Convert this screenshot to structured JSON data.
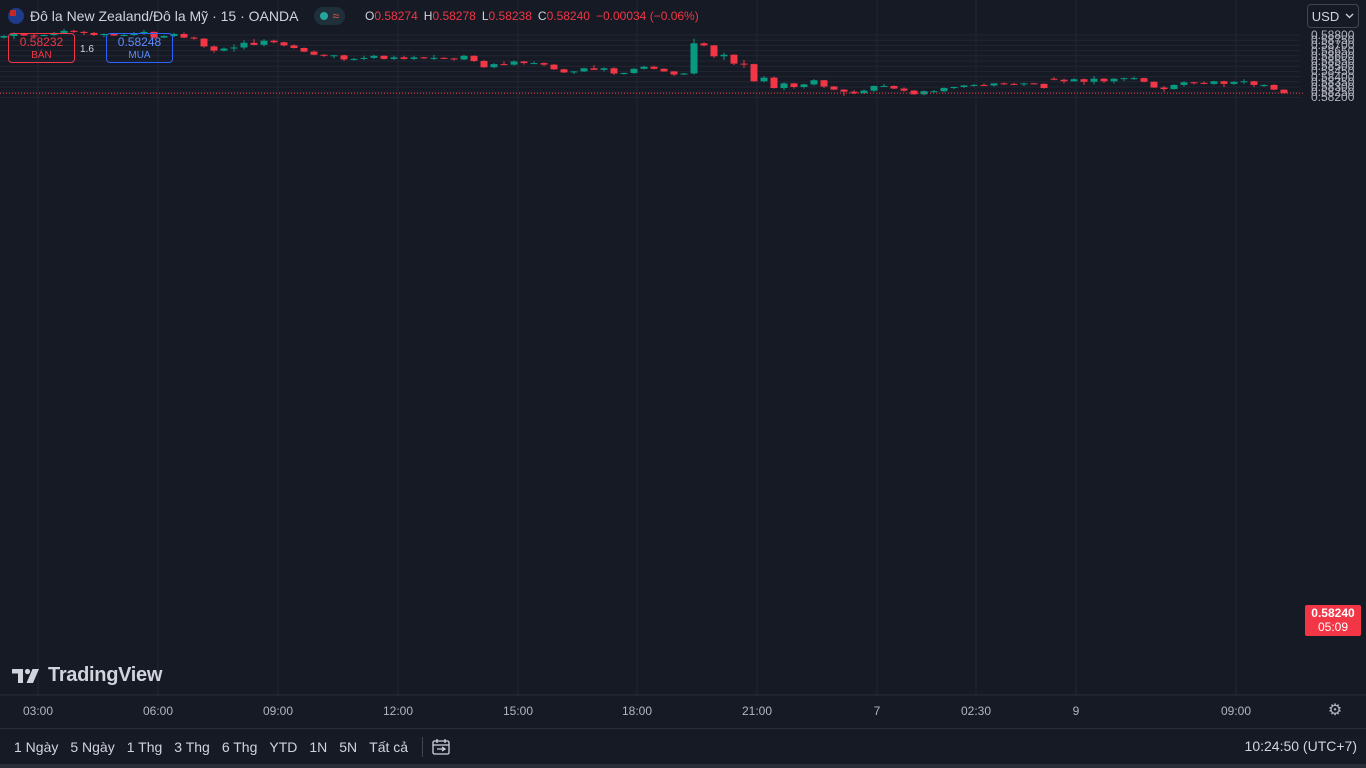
{
  "header": {
    "symbol_title": "Đô la New Zealand/Đô la Mỹ · 15 · OANDA",
    "ohlc": [
      {
        "key": "O",
        "value": "0.58274"
      },
      {
        "key": "H",
        "value": "0.58278"
      },
      {
        "key": "L",
        "value": "0.58238"
      },
      {
        "key": "C",
        "value": "0.58240"
      }
    ],
    "change": "−0.00034 (−0.06%)",
    "wave_glyph": "≈"
  },
  "trade": {
    "sell_price": "0.58232",
    "sell_label": "BÁN",
    "spread": "1.6",
    "buy_price": "0.58248",
    "buy_label": "MUA"
  },
  "currency_button": "USD",
  "last_price": {
    "price": "0.58240",
    "countdown": "05:09"
  },
  "logo_text": "TradingView",
  "toolbar": {
    "timeframes": [
      "1 Ngày",
      "5 Ngày",
      "1 Thg",
      "3 Thg",
      "6 Thg",
      "YTD",
      "1N",
      "5N",
      "Tất cả"
    ],
    "clock": "10:24:50 (UTC+7)"
  },
  "icons": {
    "settings": "gear-icon",
    "date_range": "calendar-range-icon",
    "dropdown": "chevron-down-icon",
    "flag": "nz-flag-icon"
  },
  "colors": {
    "up": "#089981",
    "down": "#f23645",
    "background": "#161a25",
    "grid": "#232632"
  },
  "chart_data": {
    "type": "candlestick",
    "title": "Đô la New Zealand/Đô la Mỹ · 15 · OANDA",
    "y_ticks": [
      "0.58800",
      "0.58750",
      "0.58700",
      "0.58650",
      "0.58600",
      "0.58550",
      "0.58500",
      "0.58450",
      "0.58400",
      "0.58350",
      "0.58300",
      "0.58250",
      "0.58200"
    ],
    "x_ticks": [
      "03:00",
      "06:00",
      "09:00",
      "12:00",
      "15:00",
      "18:00",
      "21:00",
      "7",
      "02:30",
      "9",
      "09:00"
    ],
    "ylim": [
      0.58165,
      0.58825
    ],
    "last_price": 0.5824,
    "grid": true,
    "candles": [
      [
        0.58795,
        0.588,
        0.5874,
        0.58755
      ],
      [
        0.58755,
        0.58805,
        0.58745,
        0.5879
      ],
      [
        0.5879,
        0.5888,
        0.5878,
        0.5883
      ],
      [
        0.5883,
        0.5887,
        0.5881,
        0.58835
      ],
      [
        0.58835,
        0.5884,
        0.5876,
        0.58775
      ],
      [
        0.58775,
        0.588,
        0.58765,
        0.5879
      ],
      [
        0.5879,
        0.58825,
        0.5876,
        0.5881
      ],
      [
        0.5881,
        0.5882,
        0.5879,
        0.58795
      ],
      [
        0.58795,
        0.5881,
        0.5877,
        0.5879
      ],
      [
        0.5879,
        0.58805,
        0.58785,
        0.588
      ],
      [
        0.588,
        0.5883,
        0.5879,
        0.5882
      ],
      [
        0.5882,
        0.5886,
        0.5881,
        0.5884
      ],
      [
        0.5884,
        0.5885,
        0.5882,
        0.5883
      ],
      [
        0.5883,
        0.5884,
        0.588,
        0.5882
      ],
      [
        0.5882,
        0.5883,
        0.5879,
        0.588
      ],
      [
        0.588,
        0.58815,
        0.5878,
        0.5881
      ],
      [
        0.5881,
        0.5882,
        0.5879,
        0.58795
      ],
      [
        0.58795,
        0.5881,
        0.58785,
        0.588
      ],
      [
        0.588,
        0.5883,
        0.5879,
        0.58815
      ],
      [
        0.58815,
        0.5885,
        0.588,
        0.5883
      ],
      [
        0.5883,
        0.58835,
        0.5876,
        0.58775
      ],
      [
        0.58775,
        0.588,
        0.5877,
        0.5879
      ],
      [
        0.5879,
        0.5882,
        0.5878,
        0.5881
      ],
      [
        0.5881,
        0.58825,
        0.5877,
        0.58775
      ],
      [
        0.58775,
        0.58785,
        0.58755,
        0.58765
      ],
      [
        0.58765,
        0.5877,
        0.5868,
        0.5869
      ],
      [
        0.5869,
        0.587,
        0.5863,
        0.5865
      ],
      [
        0.5865,
        0.5868,
        0.5864,
        0.5867
      ],
      [
        0.5867,
        0.5871,
        0.5864,
        0.5868
      ],
      [
        0.5868,
        0.5875,
        0.5866,
        0.58725
      ],
      [
        0.58725,
        0.5876,
        0.587,
        0.58705
      ],
      [
        0.58705,
        0.5876,
        0.5869,
        0.58745
      ],
      [
        0.58745,
        0.58755,
        0.5872,
        0.5873
      ],
      [
        0.5873,
        0.58735,
        0.5869,
        0.587
      ],
      [
        0.587,
        0.5871,
        0.5867,
        0.58675
      ],
      [
        0.58675,
        0.5868,
        0.58635,
        0.5864
      ],
      [
        0.5864,
        0.5865,
        0.58605,
        0.5861
      ],
      [
        0.5861,
        0.58615,
        0.5859,
        0.586
      ],
      [
        0.586,
        0.5861,
        0.58575,
        0.58605
      ],
      [
        0.58605,
        0.5861,
        0.5855,
        0.58565
      ],
      [
        0.58565,
        0.5858,
        0.58555,
        0.5857
      ],
      [
        0.5857,
        0.586,
        0.5856,
        0.5858
      ],
      [
        0.5858,
        0.5861,
        0.5857,
        0.586
      ],
      [
        0.586,
        0.58605,
        0.58565,
        0.5857
      ],
      [
        0.5857,
        0.586,
        0.5856,
        0.58585
      ],
      [
        0.58585,
        0.586,
        0.58565,
        0.5857
      ],
      [
        0.5857,
        0.586,
        0.5856,
        0.58585
      ],
      [
        0.58585,
        0.5859,
        0.5857,
        0.5858
      ],
      [
        0.5858,
        0.5861,
        0.5856,
        0.5858
      ],
      [
        0.5858,
        0.58585,
        0.5857,
        0.58575
      ],
      [
        0.58575,
        0.5858,
        0.58555,
        0.58565
      ],
      [
        0.58565,
        0.5861,
        0.5856,
        0.586
      ],
      [
        0.586,
        0.58605,
        0.5854,
        0.5855
      ],
      [
        0.5855,
        0.5856,
        0.58485,
        0.5849
      ],
      [
        0.5849,
        0.5853,
        0.5848,
        0.5852
      ],
      [
        0.5852,
        0.58545,
        0.5851,
        0.58515
      ],
      [
        0.58515,
        0.58555,
        0.58505,
        0.58545
      ],
      [
        0.58545,
        0.5855,
        0.58515,
        0.5853
      ],
      [
        0.5853,
        0.58545,
        0.5852,
        0.5853
      ],
      [
        0.5853,
        0.58535,
        0.585,
        0.58515
      ],
      [
        0.58515,
        0.5852,
        0.58465,
        0.5847
      ],
      [
        0.5847,
        0.58475,
        0.58435,
        0.5844
      ],
      [
        0.5844,
        0.58455,
        0.58425,
        0.5845
      ],
      [
        0.5845,
        0.58485,
        0.58445,
        0.5848
      ],
      [
        0.5848,
        0.5851,
        0.58465,
        0.58465
      ],
      [
        0.58465,
        0.5849,
        0.5845,
        0.5848
      ],
      [
        0.5848,
        0.5849,
        0.58415,
        0.5843
      ],
      [
        0.5843,
        0.5844,
        0.5842,
        0.58435
      ],
      [
        0.58435,
        0.5848,
        0.58425,
        0.58475
      ],
      [
        0.58475,
        0.58505,
        0.5847,
        0.58495
      ],
      [
        0.58495,
        0.58505,
        0.5847,
        0.58475
      ],
      [
        0.58475,
        0.5848,
        0.58445,
        0.5845
      ],
      [
        0.5845,
        0.58455,
        0.58405,
        0.5842
      ],
      [
        0.5842,
        0.58435,
        0.58415,
        0.5843
      ],
      [
        0.5843,
        0.58765,
        0.5842,
        0.5872
      ],
      [
        0.5872,
        0.5873,
        0.5869,
        0.587
      ],
      [
        0.587,
        0.58705,
        0.5858,
        0.58595
      ],
      [
        0.58595,
        0.5863,
        0.5856,
        0.5861
      ],
      [
        0.5861,
        0.58615,
        0.5851,
        0.58525
      ],
      [
        0.58525,
        0.5856,
        0.58485,
        0.5852
      ],
      [
        0.5852,
        0.58525,
        0.5835,
        0.58355
      ],
      [
        0.58355,
        0.58405,
        0.58345,
        0.5839
      ],
      [
        0.5839,
        0.584,
        0.58285,
        0.5829
      ],
      [
        0.5829,
        0.58345,
        0.5827,
        0.58335
      ],
      [
        0.58335,
        0.5834,
        0.58285,
        0.583
      ],
      [
        0.583,
        0.5833,
        0.58285,
        0.58325
      ],
      [
        0.58325,
        0.58375,
        0.58315,
        0.58365
      ],
      [
        0.58365,
        0.5837,
        0.5829,
        0.58305
      ],
      [
        0.58305,
        0.5831,
        0.5827,
        0.58275
      ],
      [
        0.58275,
        0.5828,
        0.58215,
        0.58255
      ],
      [
        0.58255,
        0.5827,
        0.5823,
        0.5824
      ],
      [
        0.5824,
        0.58275,
        0.58235,
        0.58265
      ],
      [
        0.58265,
        0.58315,
        0.58255,
        0.5831
      ],
      [
        0.5831,
        0.5833,
        0.58305,
        0.5831
      ],
      [
        0.5831,
        0.58315,
        0.5828,
        0.58285
      ],
      [
        0.58285,
        0.58295,
        0.58255,
        0.58265
      ],
      [
        0.58265,
        0.5827,
        0.58225,
        0.5823
      ],
      [
        0.5823,
        0.58265,
        0.5822,
        0.5826
      ],
      [
        0.5826,
        0.5827,
        0.58245,
        0.5826
      ],
      [
        0.5826,
        0.58295,
        0.5825,
        0.5829
      ],
      [
        0.5829,
        0.58305,
        0.5828,
        0.583
      ],
      [
        0.583,
        0.5832,
        0.5829,
        0.58315
      ],
      [
        0.58315,
        0.5833,
        0.58305,
        0.5832
      ],
      [
        0.5832,
        0.58335,
        0.5831,
        0.58315
      ],
      [
        0.58315,
        0.5833,
        0.58305,
        0.58335
      ],
      [
        0.58335,
        0.58345,
        0.5832,
        0.5833
      ],
      [
        0.5833,
        0.5834,
        0.5832,
        0.58325
      ],
      [
        0.58325,
        0.5834,
        0.5831,
        0.58335
      ],
      [
        0.58335,
        0.5834,
        0.58325,
        0.5833
      ],
      [
        0.5833,
        0.58335,
        0.58285,
        0.5829
      ],
      [
        0.5838,
        0.58395,
        0.58365,
        0.5837
      ],
      [
        0.5837,
        0.5838,
        0.58335,
        0.58355
      ],
      [
        0.58355,
        0.58385,
        0.5835,
        0.58375
      ],
      [
        0.58375,
        0.5838,
        0.5832,
        0.5835
      ],
      [
        0.5835,
        0.58405,
        0.58325,
        0.5838
      ],
      [
        0.5838,
        0.58385,
        0.5834,
        0.58355
      ],
      [
        0.58355,
        0.58385,
        0.58335,
        0.5838
      ],
      [
        0.5838,
        0.5839,
        0.58355,
        0.58385
      ],
      [
        0.58385,
        0.584,
        0.5837,
        0.58385
      ],
      [
        0.58385,
        0.5839,
        0.58345,
        0.5835
      ],
      [
        0.5835,
        0.58355,
        0.5829,
        0.58295
      ],
      [
        0.58295,
        0.5831,
        0.58255,
        0.5828
      ],
      [
        0.5828,
        0.58325,
        0.58275,
        0.5832
      ],
      [
        0.5832,
        0.58355,
        0.58305,
        0.58345
      ],
      [
        0.58345,
        0.5835,
        0.58325,
        0.5834
      ],
      [
        0.5834,
        0.58355,
        0.58325,
        0.5833
      ],
      [
        0.5833,
        0.5836,
        0.5832,
        0.58355
      ],
      [
        0.58355,
        0.5836,
        0.583,
        0.5833
      ],
      [
        0.5833,
        0.58355,
        0.5832,
        0.5835
      ],
      [
        0.5835,
        0.58375,
        0.5833,
        0.58355
      ],
      [
        0.58355,
        0.5836,
        0.583,
        0.5832
      ],
      [
        0.5832,
        0.58325,
        0.583,
        0.5832
      ],
      [
        0.5832,
        0.58325,
        0.5827,
        0.58275
      ],
      [
        0.58274,
        0.58278,
        0.58238,
        0.5824
      ]
    ]
  }
}
